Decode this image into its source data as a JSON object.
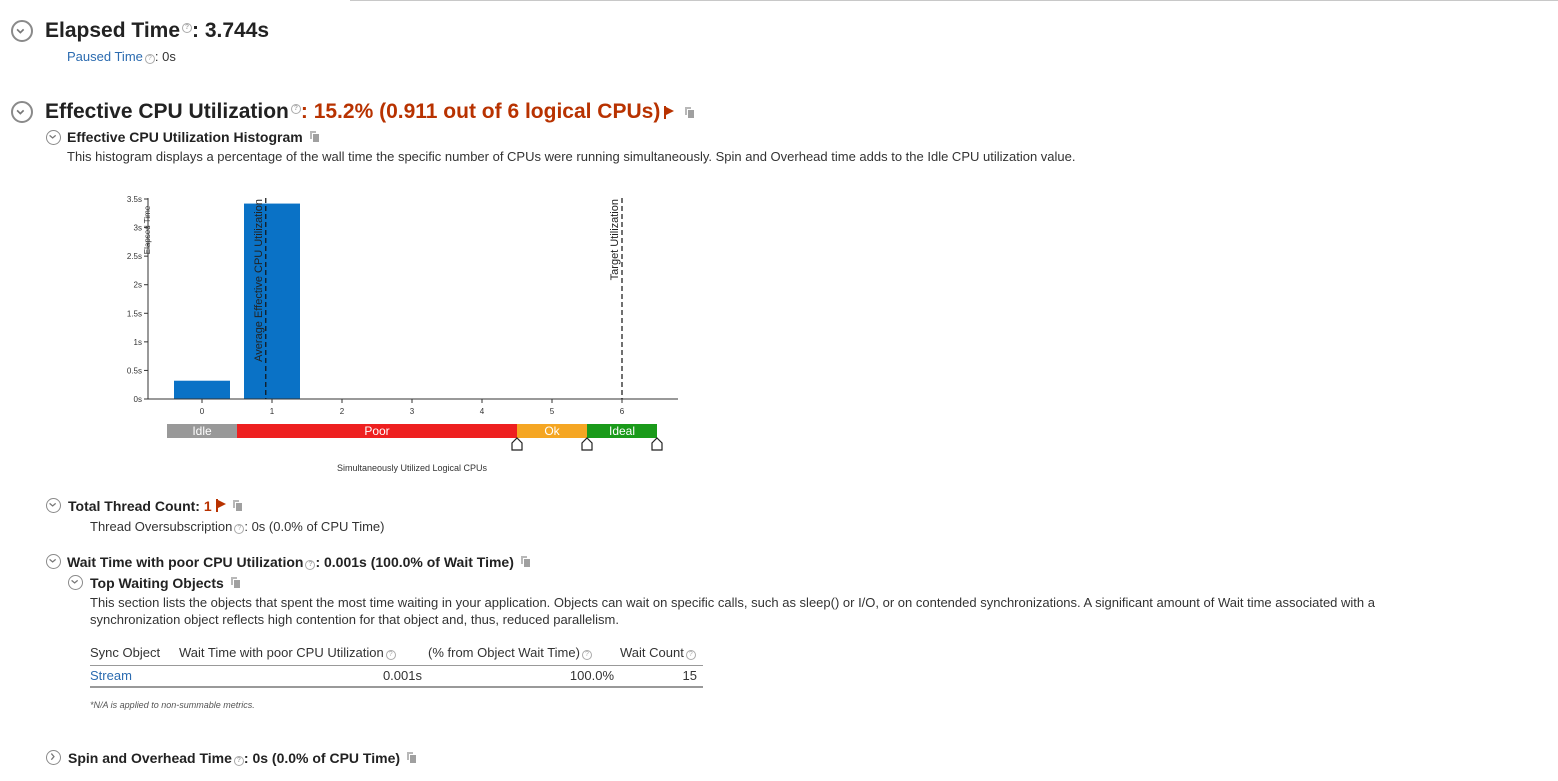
{
  "elapsed": {
    "label": "Elapsed Time",
    "value": ": 3.744s",
    "paused_label": "Paused Time",
    "paused_value": ": 0s"
  },
  "cpu": {
    "label": "Effective CPU Utilization",
    "value": ": 15.2% (0.911 out of 6 logical CPUs)",
    "histogram_title": "Effective CPU Utilization Histogram",
    "histogram_desc": "This histogram displays a percentage of the wall time the specific number of CPUs were running simultaneously. Spin and Overhead time adds to the Idle CPU utilization value."
  },
  "chart_data": {
    "type": "bar",
    "categories": [
      "0",
      "1",
      "2",
      "3",
      "4",
      "5",
      "6"
    ],
    "values": [
      0.32,
      3.42,
      0,
      0,
      0,
      0,
      0
    ],
    "ylabel": "Elapsed Time",
    "xlabel": "Simultaneously Utilized Logical CPUs",
    "yticks": [
      "0s",
      "0.5s",
      "1s",
      "1.5s",
      "2s",
      "2.5s",
      "3s",
      "3.5s"
    ],
    "ylim": [
      0,
      3.5
    ],
    "bar_color": "#0a72c6",
    "markers": [
      {
        "label": "Average Effective CPU Utilization",
        "x": 0.911
      },
      {
        "label": "Target Utilization",
        "x": 6
      }
    ],
    "bands": [
      {
        "label": "Idle",
        "from": -0.5,
        "to": 0.5,
        "color": "#999999"
      },
      {
        "label": "Poor",
        "from": 0.5,
        "to": 4.5,
        "color": "#ee2020"
      },
      {
        "label": "Ok",
        "from": 4.5,
        "to": 5.5,
        "color": "#f5a623"
      },
      {
        "label": "Ideal",
        "from": 5.5,
        "to": 6.5,
        "color": "#1a9a1a"
      }
    ],
    "handles": [
      4.5,
      5.5,
      6.5
    ]
  },
  "threads": {
    "label": "Total Thread Count:",
    "value": "1",
    "oversub_label": "Thread Oversubscription",
    "oversub_value": ": 0s (0.0% of CPU Time)"
  },
  "wait": {
    "label": "Wait Time with poor CPU Utilization",
    "value": ": 0.001s (100.0% of Wait Time)",
    "top_title": "Top Waiting Objects",
    "top_desc_1": "This section lists the objects that spent the most time waiting in your application. Objects can wait on specific calls, such as sleep() or I/O, or on contended synchronizations. A significant amount of Wait time associated with a",
    "top_desc_2": "synchronization object reflects high contention for that object and, thus, reduced parallelism.",
    "columns": [
      "Sync Object",
      "Wait Time with poor CPU Utilization",
      "(% from Object Wait Time)",
      "Wait Count"
    ],
    "rows": [
      {
        "object": "Stream",
        "wait": "0.001s",
        "pct": "100.0%",
        "count": "15"
      }
    ],
    "note": "*N/A is applied to non-summable metrics."
  },
  "spin": {
    "label": "Spin and Overhead Time",
    "value": ": 0s (0.0% of CPU Time)"
  }
}
